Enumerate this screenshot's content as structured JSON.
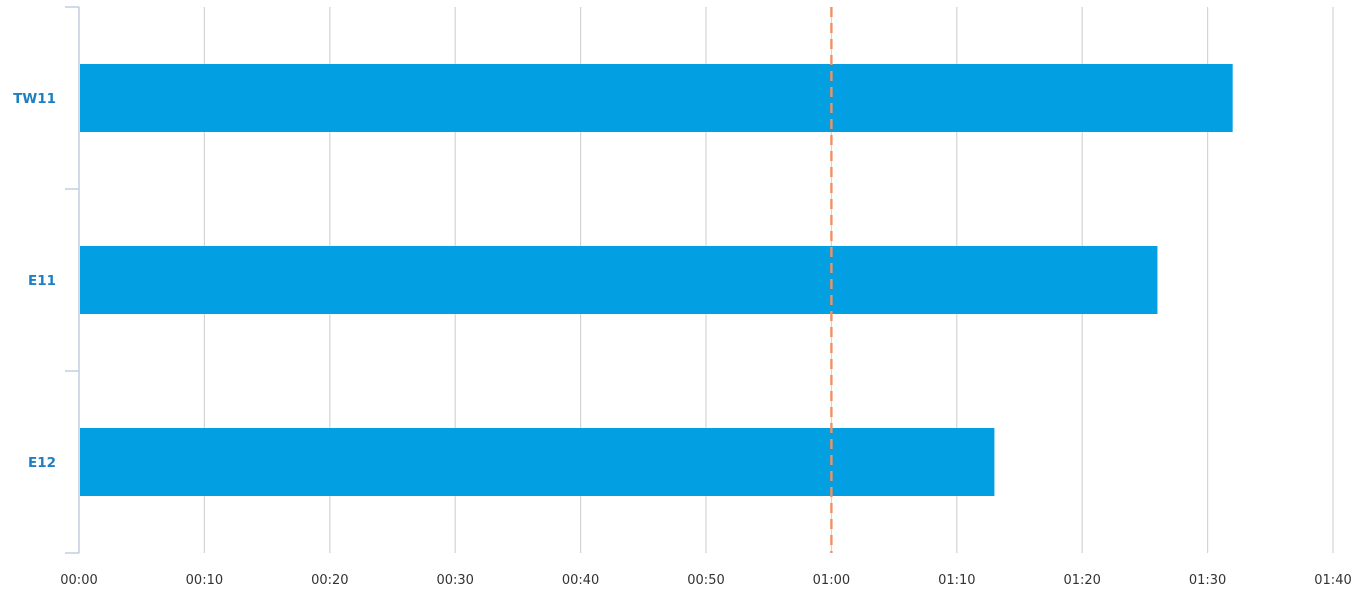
{
  "chart_data": {
    "type": "bar",
    "orientation": "horizontal",
    "categories": [
      "TW11",
      "E11",
      "E12"
    ],
    "values": [
      92,
      86,
      73
    ],
    "value_unit": "seconds",
    "x_tick_values": [
      0,
      10,
      20,
      30,
      40,
      50,
      60,
      70,
      80,
      90,
      100
    ],
    "x_tick_labels": [
      "00:00",
      "00:10",
      "00:20",
      "00:30",
      "00:40",
      "00:50",
      "01:00",
      "01:10",
      "01:20",
      "01:30",
      "01:40"
    ],
    "xlim": [
      0,
      100
    ],
    "title": "",
    "xlabel": "",
    "ylabel": "",
    "grid": "vertical",
    "legend": "none",
    "reference_line": {
      "value": 60,
      "style": "dashed",
      "color": "#f4915e"
    },
    "colors": {
      "bar": "#039fe3",
      "grid": "#d4d4d4",
      "axis": "#b9c6dc",
      "category_label": "#1e7fc2",
      "tick_label": "#333333"
    }
  }
}
